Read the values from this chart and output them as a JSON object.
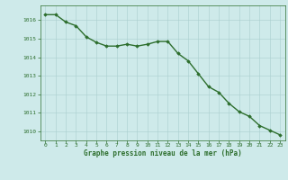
{
  "x": [
    0,
    1,
    2,
    3,
    4,
    5,
    6,
    7,
    8,
    9,
    10,
    11,
    12,
    13,
    14,
    15,
    16,
    17,
    18,
    19,
    20,
    21,
    22,
    23
  ],
  "y": [
    1016.3,
    1016.3,
    1015.9,
    1015.7,
    1015.1,
    1014.8,
    1014.6,
    1014.6,
    1014.7,
    1014.6,
    1014.7,
    1014.85,
    1014.85,
    1014.2,
    1013.8,
    1013.1,
    1012.4,
    1012.1,
    1011.5,
    1011.05,
    1010.8,
    1010.3,
    1010.05,
    1009.8
  ],
  "line_color": "#2d6e2d",
  "marker": "D",
  "marker_size": 1.8,
  "background_color": "#ceeaea",
  "grid_color": "#aacece",
  "tick_label_color": "#2d6e2d",
  "xlabel": "Graphe pression niveau de la mer (hPa)",
  "xlabel_color": "#2d6e2d",
  "ylim": [
    1009.5,
    1016.8
  ],
  "yticks": [
    1010,
    1011,
    1012,
    1013,
    1014,
    1015,
    1016
  ],
  "xticks": [
    0,
    1,
    2,
    3,
    4,
    5,
    6,
    7,
    8,
    9,
    10,
    11,
    12,
    13,
    14,
    15,
    16,
    17,
    18,
    19,
    20,
    21,
    22,
    23
  ],
  "line_width": 1.0,
  "spine_color": "#2d6e2d"
}
